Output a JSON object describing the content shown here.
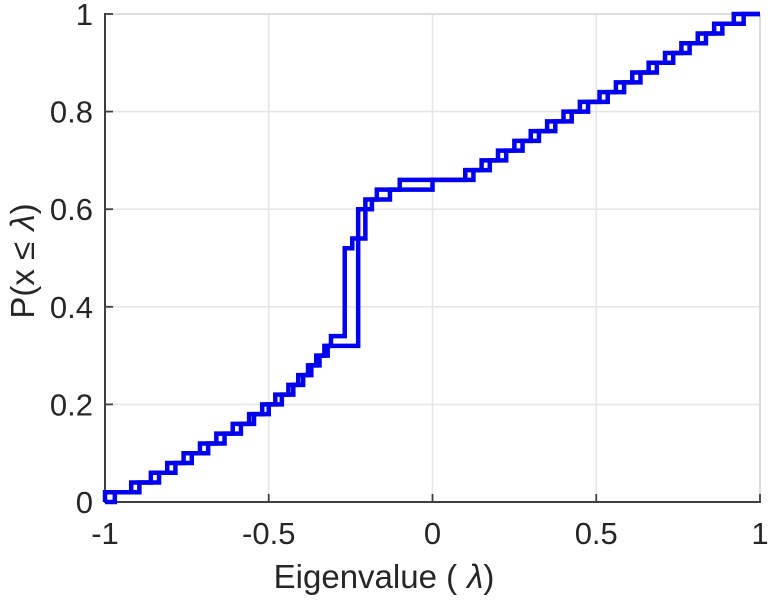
{
  "figure": {
    "background_color": "#ffffff",
    "text_color": "#262626",
    "axis_dark_color": "#3f3f3f",
    "axis_light_color": "#d4d4d4",
    "grid_color": "#e6e6e6"
  },
  "chart_data": {
    "type": "line",
    "subtype": "empirical-cdf-stairs",
    "title": "",
    "xlabel": "Eigenvalue ( λ)",
    "ylabel": "P(x ≤ λ)",
    "xlabel_parts": {
      "pre": "Eigenvalue (",
      "lambda": "λ",
      "post": ")"
    },
    "ylabel_parts": {
      "pre": "P(x ≤ ",
      "lambda": "λ",
      "post": ")"
    },
    "xlim": [
      -1,
      1
    ],
    "ylim": [
      0,
      1
    ],
    "x_ticks": [
      -1,
      -0.5,
      0,
      0.5,
      1
    ],
    "x_tick_labels": [
      "-1",
      "-0.5",
      "0",
      "0.5",
      "1"
    ],
    "y_ticks": [
      0,
      0.2,
      0.4,
      0.6,
      0.8,
      1
    ],
    "y_tick_labels": [
      "0",
      "0.2",
      "0.4",
      "0.6",
      "0.8",
      "1"
    ],
    "grid": true,
    "legend": null,
    "line_color": "#0000ee",
    "line_width": 4.5,
    "series": [
      {
        "name": "ecdf-curve-1",
        "n": 50,
        "samples": [
          -1.0,
          -0.92,
          -0.86,
          -0.81,
          -0.76,
          -0.71,
          -0.66,
          -0.61,
          -0.56,
          -0.52,
          -0.48,
          -0.44,
          -0.41,
          -0.38,
          -0.355,
          -0.33,
          -0.31,
          -0.268,
          -0.268,
          -0.268,
          -0.268,
          -0.268,
          -0.268,
          -0.268,
          -0.268,
          -0.268,
          -0.245,
          -0.205,
          -0.205,
          -0.205,
          -0.205,
          -0.17,
          -0.1,
          0.1,
          0.15,
          0.2,
          0.25,
          0.3,
          0.35,
          0.4,
          0.45,
          0.51,
          0.56,
          0.61,
          0.66,
          0.71,
          0.76,
          0.81,
          0.86,
          0.92
        ]
      },
      {
        "name": "ecdf-curve-2",
        "n": 50,
        "samples": [
          -0.97,
          -0.895,
          -0.835,
          -0.785,
          -0.735,
          -0.685,
          -0.635,
          -0.585,
          -0.545,
          -0.5,
          -0.46,
          -0.425,
          -0.395,
          -0.37,
          -0.345,
          -0.32,
          -0.227,
          -0.227,
          -0.227,
          -0.227,
          -0.227,
          -0.227,
          -0.227,
          -0.227,
          -0.227,
          -0.227,
          -0.227,
          -0.227,
          -0.227,
          -0.227,
          -0.185,
          -0.13,
          0.0,
          0.125,
          0.175,
          0.225,
          0.275,
          0.325,
          0.375,
          0.425,
          0.475,
          0.535,
          0.585,
          0.635,
          0.685,
          0.735,
          0.785,
          0.835,
          0.885,
          0.95
        ]
      }
    ]
  }
}
